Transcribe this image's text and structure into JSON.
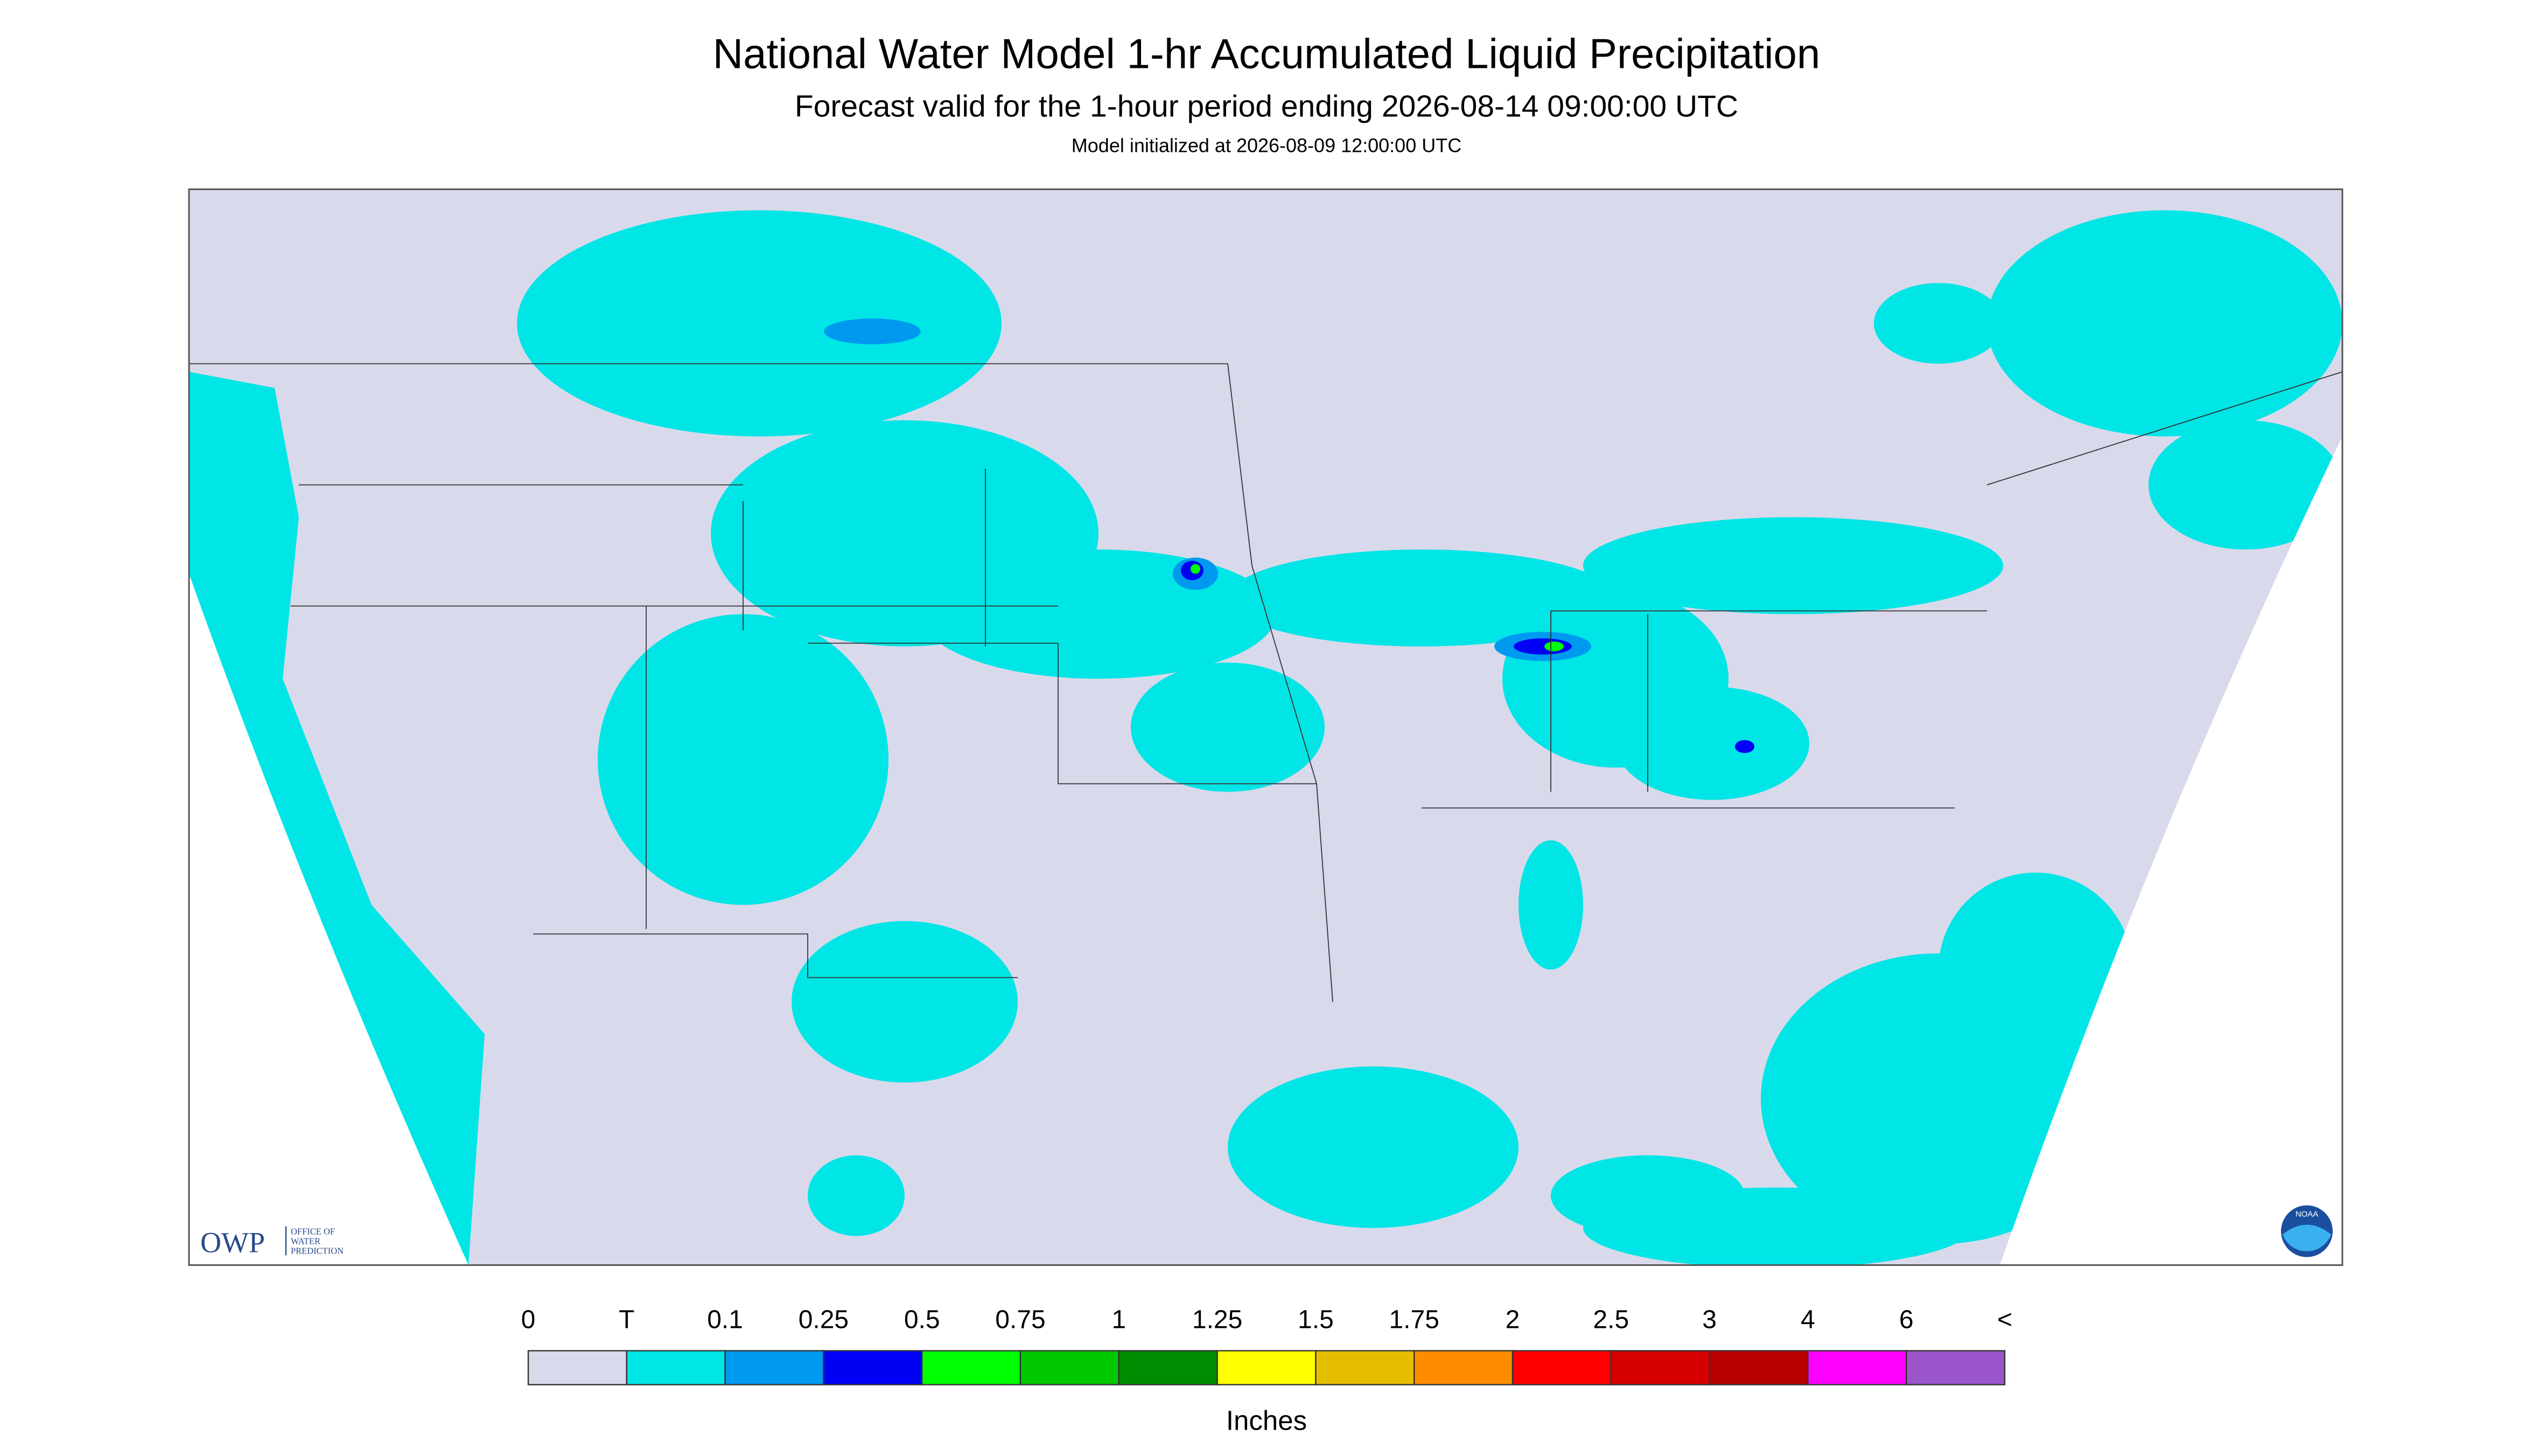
{
  "header": {
    "title": "National Water Model 1-hr Accumulated Liquid Precipitation",
    "subtitle": "Forecast valid for the 1-hour period ending 2026-08-14 09:00:00 UTC",
    "init": "Model initialized at 2026-08-09 12:00:00 UTC"
  },
  "legend": {
    "labels": [
      "0",
      "T",
      "0.1",
      "0.25",
      "0.5",
      "0.75",
      "1",
      "1.25",
      "1.5",
      "1.75",
      "2",
      "2.5",
      "3",
      "4",
      "6",
      "<"
    ],
    "colors": [
      "#d9d9ec",
      "#00e5e5",
      "#0099f0",
      "#0000f5",
      "#00ff00",
      "#00c800",
      "#008c00",
      "#ffff00",
      "#e6be00",
      "#ff8c00",
      "#ff0000",
      "#d70000",
      "#b90000",
      "#ff00ff",
      "#9955c9"
    ],
    "unit": "Inches"
  },
  "logo": {
    "abbr": "OWP",
    "name": [
      "OFFICE OF",
      "WATER",
      "PREDICTION"
    ],
    "noaa": "NOAA"
  }
}
